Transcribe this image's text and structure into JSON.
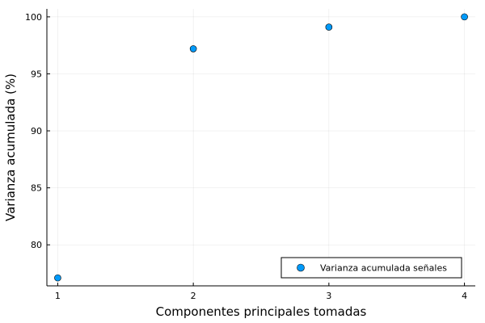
{
  "chart_data": {
    "type": "scatter",
    "title": "",
    "xlabel": "Componentes principales tomadas",
    "ylabel": "Varianza acumulada (%)",
    "xlim": [
      0.92,
      4.08
    ],
    "ylim": [
      76.4,
      100.7
    ],
    "xticks": [
      1,
      2,
      3,
      4
    ],
    "xtick_labels": [
      "1",
      "2",
      "3",
      "4"
    ],
    "yticks": [
      80,
      85,
      90,
      95,
      100
    ],
    "ytick_labels": [
      "80",
      "85",
      "90",
      "95",
      "100"
    ],
    "grid": true,
    "legend_position": "bottom-right",
    "series": [
      {
        "name": "Varianza acumulada señales",
        "color": "#009AFA",
        "marker": "circle",
        "x": [
          1,
          2,
          3,
          4
        ],
        "y": [
          77.1,
          97.2,
          99.1,
          100.0
        ]
      }
    ]
  }
}
